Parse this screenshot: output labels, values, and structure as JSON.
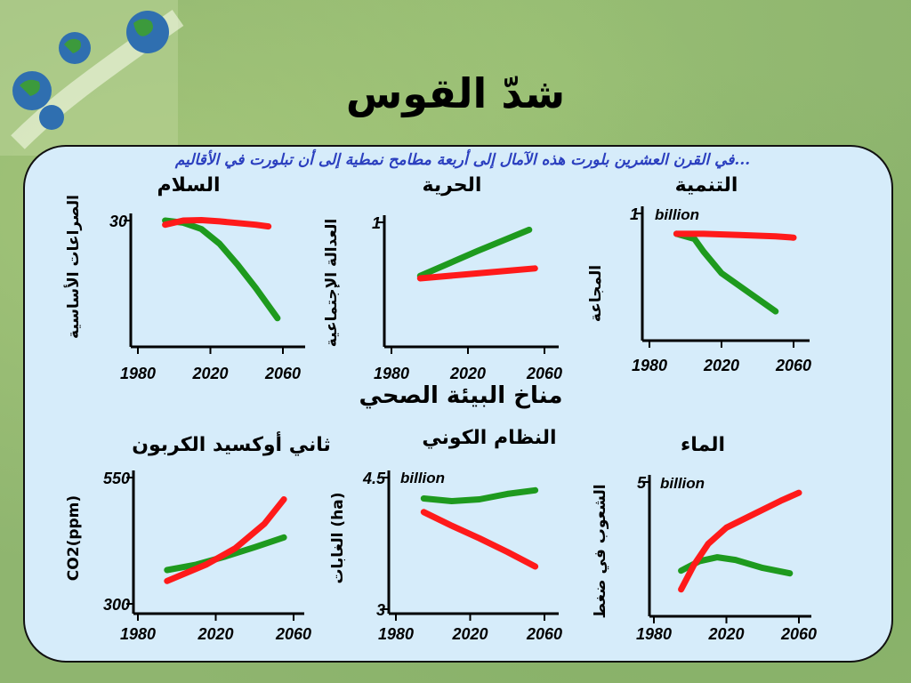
{
  "slide": {
    "title": "شدّ القوس",
    "subtitle": "...في القرن العشرين بلورت هذه الآمال إلى أربعة مطامح نمطية إلى أن تبلورت في الأقاليم",
    "section_heading": "مناخ البيئة الصحي",
    "colors": {
      "background": "#8fb56f",
      "panel": "#d6ecfa",
      "subtitle": "#2b3fbf",
      "green_series": "#1e9a1e",
      "red_series": "#ff1a1a"
    }
  },
  "chart_data": [
    {
      "type": "line",
      "title": "السلام",
      "ylabel": "الصراعات الأساسية",
      "xlabel": "",
      "x_ticks": [
        "1980",
        "2020",
        "2060"
      ],
      "y_ticks": [
        "30"
      ],
      "annotation": "",
      "xlim": [
        1980,
        2060
      ],
      "ylim": [
        0,
        30
      ],
      "series": [
        {
          "color": "#1e9a1e",
          "x": [
            1995,
            2005,
            2015,
            2025,
            2035,
            2045,
            2057
          ],
          "y": [
            30,
            29.5,
            28,
            24.5,
            19.5,
            14,
            6.8
          ]
        },
        {
          "color": "#ff1a1a",
          "x": [
            1995,
            2005,
            2015,
            2025,
            2035,
            2045,
            2052
          ],
          "y": [
            29,
            30,
            30.1,
            29.8,
            29.4,
            29.0,
            28.6
          ]
        }
      ]
    },
    {
      "type": "line",
      "title": "الحرية",
      "ylabel": "العدالة الإجتماعية",
      "xlabel": "",
      "x_ticks": [
        "1980",
        "2020",
        "2060"
      ],
      "y_ticks": [
        "1"
      ],
      "annotation": "",
      "xlim": [
        1980,
        2060
      ],
      "ylim": [
        0,
        1
      ],
      "series": [
        {
          "color": "#1e9a1e",
          "x": [
            1995,
            2025,
            2052
          ],
          "y": [
            0.57,
            0.77,
            0.94
          ]
        },
        {
          "color": "#ff1a1a",
          "x": [
            1995,
            2025,
            2055
          ],
          "y": [
            0.55,
            0.59,
            0.63
          ]
        }
      ]
    },
    {
      "type": "line",
      "title": "التنمية",
      "ylabel": "المجاعة",
      "xlabel": "",
      "x_ticks": [
        "1980",
        "2020",
        "2060"
      ],
      "y_ticks": [
        "1"
      ],
      "annotation": "billion",
      "xlim": [
        1980,
        2060
      ],
      "ylim": [
        0,
        1
      ],
      "series": [
        {
          "color": "#1e9a1e",
          "x": [
            1995,
            2005,
            2010,
            2020,
            2035,
            2050
          ],
          "y": [
            0.84,
            0.8,
            0.7,
            0.53,
            0.38,
            0.23
          ]
        },
        {
          "color": "#ff1a1a",
          "x": [
            1995,
            2010,
            2030,
            2050,
            2060
          ],
          "y": [
            0.84,
            0.84,
            0.83,
            0.82,
            0.81
          ]
        }
      ]
    },
    {
      "type": "line",
      "title": "ثاني أوكسيد الكربون",
      "ylabel": "CO2(ppm)",
      "xlabel": "",
      "x_ticks": [
        "1980",
        "2020",
        "2060"
      ],
      "y_ticks": [
        "550",
        "300"
      ],
      "annotation": "",
      "xlim": [
        1980,
        2060
      ],
      "ylim": [
        300,
        550
      ],
      "series": [
        {
          "color": "#1e9a1e",
          "x": [
            1995,
            2010,
            2025,
            2040,
            2055
          ],
          "y": [
            380,
            390,
            405,
            422,
            440
          ]
        },
        {
          "color": "#ff1a1a",
          "x": [
            1995,
            2015,
            2030,
            2045,
            2055
          ],
          "y": [
            360,
            390,
            420,
            465,
            510
          ]
        }
      ]
    },
    {
      "type": "line",
      "title": "النظام الكوني",
      "ylabel": "الغابات (ha)",
      "xlabel": "",
      "x_ticks": [
        "1980",
        "2020",
        "2060"
      ],
      "y_ticks": [
        "4.5",
        "3"
      ],
      "annotation": "billion",
      "xlim": [
        1980,
        2060
      ],
      "ylim": [
        3,
        4.5
      ],
      "series": [
        {
          "color": "#1e9a1e",
          "x": [
            1995,
            2010,
            2025,
            2040,
            2055
          ],
          "y": [
            4.27,
            4.24,
            4.26,
            4.32,
            4.36
          ]
        },
        {
          "color": "#ff1a1a",
          "x": [
            1995,
            2010,
            2025,
            2040,
            2055
          ],
          "y": [
            4.12,
            3.97,
            3.83,
            3.68,
            3.52
          ]
        }
      ]
    },
    {
      "type": "line",
      "title": "الماء",
      "ylabel": "الشعوب في ضغط",
      "xlabel": "",
      "x_ticks": [
        "1980",
        "2020",
        "2060"
      ],
      "y_ticks": [
        "5"
      ],
      "annotation": "billion",
      "xlim": [
        1980,
        2060
      ],
      "ylim": [
        0,
        5
      ],
      "series": [
        {
          "color": "#1e9a1e",
          "x": [
            1995,
            2005,
            2015,
            2025,
            2040,
            2055
          ],
          "y": [
            1.7,
            2.05,
            2.2,
            2.1,
            1.8,
            1.6
          ]
        },
        {
          "color": "#ff1a1a",
          "x": [
            1995,
            2002,
            2010,
            2020,
            2035,
            2050,
            2060
          ],
          "y": [
            1.0,
            1.9,
            2.7,
            3.3,
            3.8,
            4.3,
            4.6
          ]
        }
      ]
    }
  ]
}
